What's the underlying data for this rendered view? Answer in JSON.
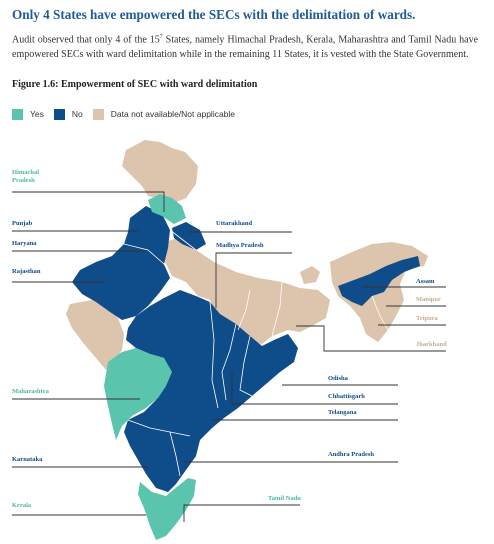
{
  "heading": "Only 4 States have empowered the SECs with the delimitation of wards.",
  "paragraph": {
    "before_sup": "Audit observed that only 4 of the 15",
    "sup": "7",
    "after_sup": " States, namely Himachal Pradesh, Kerala, Maharashtra and Tamil Nadu have empowered SECs with ward delimitation while in the remaining 11 States, it is vested with the State Government."
  },
  "figure_title": "Figure 1.6: Empowerment of SEC with ward delimitation",
  "legend": [
    {
      "label": "Yes",
      "color": "#5bc4ad"
    },
    {
      "label": "No",
      "color": "#0f4c8a"
    },
    {
      "label": "Data not available/Not applicable",
      "color": "#dcc4ad"
    }
  ],
  "colors": {
    "yes": "#5bc4ad",
    "no": "#0f4c8a",
    "na": "#dcc4ad",
    "leader": "#333333"
  },
  "labels": {
    "himachal": "Himachal Pradesh",
    "punjab": "Punjab",
    "uttarakhand": "Uttarakhand",
    "haryana": "Haryana",
    "madhya_pradesh": "Madhya Pradesh",
    "rajasthan": "Rajasthan",
    "assam": "Assam",
    "manipur": "Manipur",
    "tripura": "Tripura",
    "jharkhand": "Jharkhand",
    "odisha": "Odisha",
    "maharashtra": "Maharashtra",
    "chhattisgarh": "Chhattisgarh",
    "telangana": "Telangana",
    "andhra_pradesh": "Andhra Pradesh",
    "karnataka": "Karnataka",
    "tamil_nadu": "Tamil Nadu",
    "kerala": "Kerala"
  }
}
